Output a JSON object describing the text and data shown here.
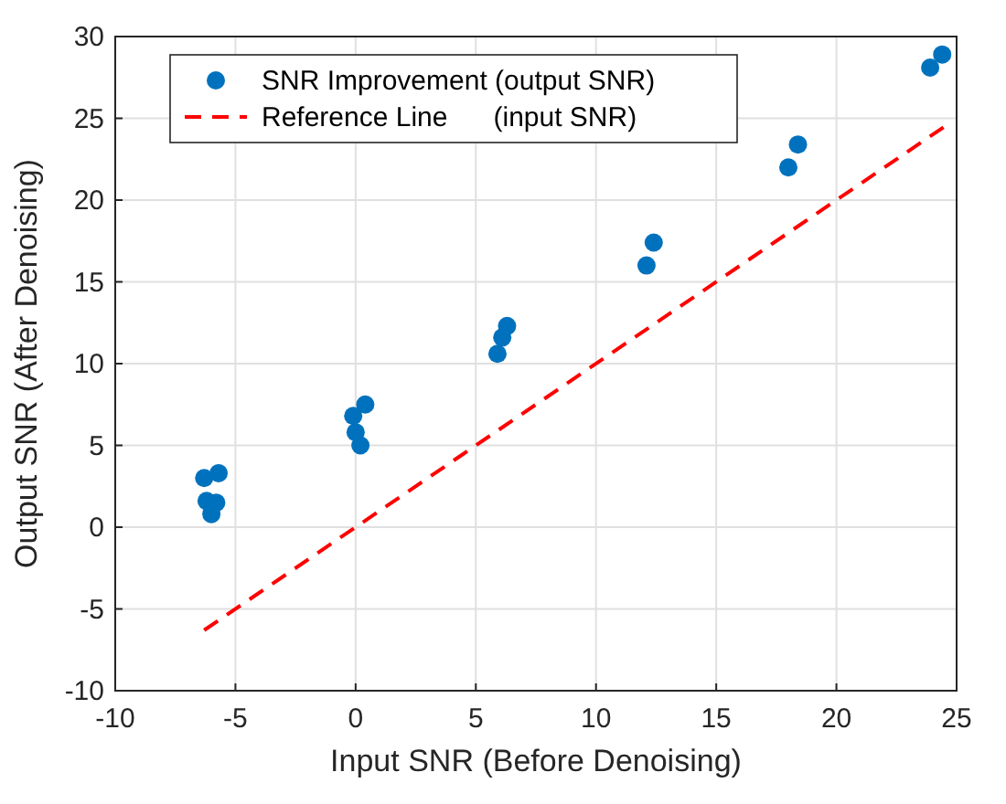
{
  "chart_data": {
    "type": "scatter",
    "xlabel": "Input SNR (Before Denoising)",
    "ylabel": "Output SNR (After Denoising)",
    "xlim": [
      -10,
      25
    ],
    "ylim": [
      -10,
      30
    ],
    "xticks": [
      -10,
      -5,
      0,
      5,
      10,
      15,
      20,
      25
    ],
    "yticks": [
      -10,
      -5,
      0,
      5,
      10,
      15,
      20,
      25,
      30
    ],
    "grid": true,
    "legend": "top left",
    "marker": "circle",
    "series": [
      {
        "name": "SNR Improvement (output SNR)",
        "color": "#0072bd",
        "x": [
          -6.3,
          -5.7,
          -6.2,
          -5.8,
          -6.0,
          -0.1,
          0.4,
          0.0,
          0.2,
          6.3,
          5.9,
          6.1,
          12.4,
          12.1,
          18.4,
          18.0,
          24.4,
          23.9
        ],
        "values": [
          3.0,
          3.3,
          1.6,
          1.5,
          0.8,
          6.8,
          7.5,
          5.8,
          5.0,
          12.3,
          10.6,
          11.6,
          17.4,
          16.0,
          23.4,
          22.0,
          28.9,
          28.1
        ]
      },
      {
        "name": "Reference Line      (input SNR)",
        "color": "#ff0000",
        "type": "line",
        "line_style": "dashed",
        "marker": "none",
        "x": [
          -6.3,
          24.5
        ],
        "values": [
          -6.3,
          24.5
        ]
      }
    ]
  }
}
